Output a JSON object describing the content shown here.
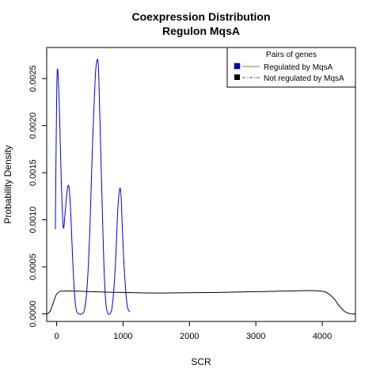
{
  "chart_data": {
    "type": "line",
    "title": "Coexpression Distribution",
    "subtitle": "Regulon MqsA",
    "xlabel": "SCR",
    "ylabel": "Probability Density",
    "xlim": [
      -150,
      4500
    ],
    "ylim": [
      -8e-05,
      0.00283
    ],
    "x_ticks": [
      {
        "value": 0,
        "label": "0"
      },
      {
        "value": 1000,
        "label": "1000"
      },
      {
        "value": 2000,
        "label": "2000"
      },
      {
        "value": 3000,
        "label": "3000"
      },
      {
        "value": 4000,
        "label": "4000"
      }
    ],
    "y_ticks": [
      {
        "value": 0,
        "label": "0.0000"
      },
      {
        "value": 0.0005,
        "label": "0.0005"
      },
      {
        "value": 0.001,
        "label": "0.0010"
      },
      {
        "value": 0.0015,
        "label": "0.0015"
      },
      {
        "value": 0.002,
        "label": "0.0020"
      },
      {
        "value": 0.0025,
        "label": "0.0025"
      }
    ],
    "grid": false,
    "legend": {
      "title": "Pairs of genes",
      "position": "top-right"
    },
    "series": [
      {
        "name": "Regulated by  MqsA",
        "color": "#0000cc",
        "line_style": "solid",
        "x": [
          -20,
          0,
          15,
          40,
          70,
          100,
          130,
          160,
          185,
          210,
          240,
          270,
          300,
          340,
          380,
          420,
          460,
          500,
          540,
          580,
          610,
          630,
          650,
          680,
          710,
          740,
          770,
          800,
          830,
          860,
          890,
          920,
          950,
          970,
          990,
          1020,
          1060,
          1100
        ],
        "y": [
          0.0009,
          0.0023,
          0.0026,
          0.0022,
          0.0014,
          0.00092,
          0.0011,
          0.00132,
          0.00135,
          0.0011,
          0.0006,
          0.0002,
          3e-05,
          0.0,
          0.0,
          5e-05,
          0.0003,
          0.0009,
          0.0018,
          0.0025,
          0.0027,
          0.0026,
          0.0021,
          0.0013,
          0.00055,
          0.00012,
          1e-05,
          0.0,
          5e-05,
          0.00025,
          0.0006,
          0.0011,
          0.00133,
          0.00125,
          0.0009,
          0.00045,
          0.0001,
          2e-05
        ]
      },
      {
        "name": "Not regulated by  MqsA",
        "color": "#000000",
        "line_style": "dashed",
        "x": [
          -150,
          -120,
          -90,
          -60,
          -30,
          0,
          50,
          100,
          200,
          400,
          600,
          800,
          1000,
          1200,
          1500,
          1800,
          2100,
          2400,
          2700,
          3000,
          3300,
          3600,
          3800,
          3950,
          4050,
          4120,
          4180,
          4240,
          4300,
          4350,
          4400,
          4450,
          4500
        ],
        "y": [
          0.0,
          1e-05,
          4e-05,
          0.0001,
          0.00016,
          0.00021,
          0.00024,
          0.000243,
          0.000243,
          0.00024,
          0.000235,
          0.00023,
          0.000228,
          0.000225,
          0.000222,
          0.000224,
          0.000226,
          0.000228,
          0.000232,
          0.000236,
          0.000241,
          0.000245,
          0.000248,
          0.000245,
          0.000232,
          0.0002,
          0.00016,
          0.0001,
          5e-05,
          2e-05,
          6e-06,
          1e-06,
          0.0
        ]
      }
    ]
  }
}
